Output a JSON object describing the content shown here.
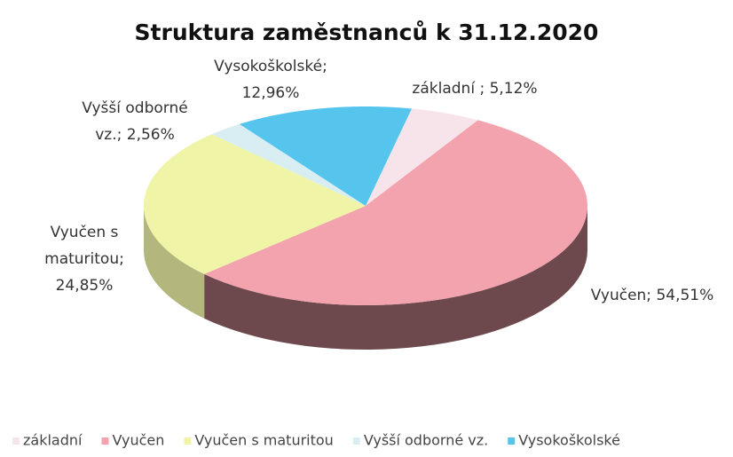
{
  "chart_data": {
    "type": "pie3d",
    "title": "Struktura zaměstnanců k 31.12.2020",
    "categories": [
      "základní",
      "Vyučen",
      "Vyučen s maturitou",
      "Vyšší odborné vz.",
      "Vysokoškolské"
    ],
    "values": [
      5.12,
      54.51,
      24.85,
      2.56,
      12.96
    ],
    "value_labels": [
      [
        "základní ; 5,12%"
      ],
      [
        "Vyučen; 54,51%"
      ],
      [
        "Vyučen s",
        "maturitou;",
        "24,85%"
      ],
      [
        "Vyšší odborné",
        "vz.; 2,56%"
      ],
      [
        "Vysokoškolské;",
        "12,96%"
      ]
    ],
    "colors": [
      "#f7e3ea",
      "#f2a3ad",
      "#eff4a6",
      "#d9eef2",
      "#55c5ee"
    ],
    "legend": "bottom"
  }
}
